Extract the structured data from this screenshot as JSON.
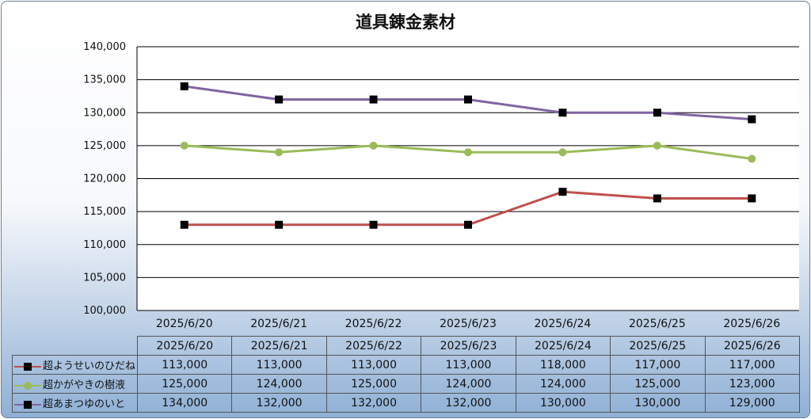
{
  "chart_data": {
    "type": "line",
    "title": "道具錬金素材",
    "categories": [
      "2025/6/20",
      "2025/6/21",
      "2025/6/22",
      "2025/6/23",
      "2025/6/24",
      "2025/6/25",
      "2025/6/26"
    ],
    "ylim": [
      100000,
      140000
    ],
    "yticks": [
      100000,
      105000,
      110000,
      115000,
      120000,
      125000,
      130000,
      135000,
      140000
    ],
    "ytick_labels": [
      "100,000",
      "105,000",
      "110,000",
      "115,000",
      "120,000",
      "125,000",
      "130,000",
      "135,000",
      "140,000"
    ],
    "grid": true,
    "legend": "data-table",
    "series": [
      {
        "name": "超ようせいのひだね",
        "color": "#c0504d",
        "marker": "square",
        "marker_color": "#000000",
        "values": [
          113000,
          113000,
          113000,
          113000,
          118000,
          117000,
          117000
        ],
        "labels": [
          "113,000",
          "113,000",
          "113,000",
          "113,000",
          "118,000",
          "117,000",
          "117,000"
        ]
      },
      {
        "name": "超かがやきの樹液",
        "color": "#9bbb59",
        "marker": "circle",
        "marker_color": "#9bbb59",
        "values": [
          125000,
          124000,
          125000,
          124000,
          124000,
          125000,
          123000
        ],
        "labels": [
          "125,000",
          "124,000",
          "125,000",
          "124,000",
          "124,000",
          "125,000",
          "123,000"
        ]
      },
      {
        "name": "超あまつゆのいと",
        "color": "#8064a2",
        "marker": "square",
        "marker_color": "#000000",
        "values": [
          134000,
          132000,
          132000,
          132000,
          130000,
          130000,
          129000
        ],
        "labels": [
          "134,000",
          "132,000",
          "132,000",
          "132,000",
          "130,000",
          "130,000",
          "129,000"
        ]
      }
    ]
  }
}
